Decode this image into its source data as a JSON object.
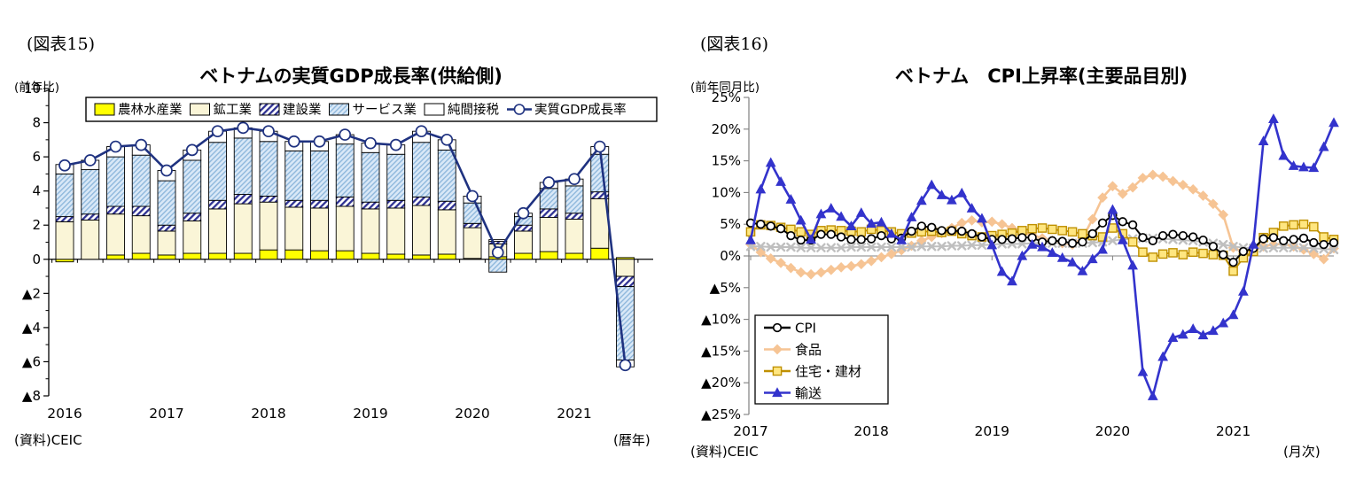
{
  "figure15": {
    "tag": "(図表15)",
    "unit_label": "(前年比)",
    "title": "ベトナムの実質GDP成長率(供給側)",
    "source": "(資料)CEIC",
    "axis_note": "(暦年)",
    "chart_data": {
      "type": "bar",
      "stacked": true,
      "x_unit": "quarterly",
      "x_years": [
        2016,
        2017,
        2018,
        2019,
        2020,
        2021
      ],
      "n_points": 23,
      "ylim": [
        -8,
        10
      ],
      "yticks": [
        10,
        8,
        6,
        4,
        2,
        0,
        -2,
        -4,
        -6,
        -8
      ],
      "bar_series": [
        {
          "name": "農林水産業",
          "fill": "#FFFF00",
          "values": [
            -0.15,
            0.0,
            0.25,
            0.35,
            0.25,
            0.35,
            0.35,
            0.35,
            0.55,
            0.55,
            0.5,
            0.5,
            0.35,
            0.3,
            0.25,
            0.3,
            0.05,
            0.15,
            0.35,
            0.45,
            0.35,
            0.65,
            0.1
          ]
        },
        {
          "name": "鉱工業",
          "fill": "#FAF5D7",
          "values": [
            2.2,
            2.3,
            2.4,
            2.2,
            1.4,
            1.9,
            2.6,
            2.9,
            2.8,
            2.5,
            2.5,
            2.6,
            2.6,
            2.7,
            2.9,
            2.6,
            1.8,
            0.75,
            1.3,
            2.0,
            2.0,
            2.9,
            -1.0
          ]
        },
        {
          "name": "建設業",
          "fill": "hatch-navy",
          "hatch_color": "#2E3192",
          "values": [
            0.3,
            0.35,
            0.45,
            0.55,
            0.35,
            0.45,
            0.5,
            0.55,
            0.35,
            0.4,
            0.45,
            0.55,
            0.4,
            0.45,
            0.5,
            0.5,
            0.25,
            0.15,
            0.35,
            0.5,
            0.35,
            0.4,
            -0.6
          ]
        },
        {
          "name": "サービス業",
          "fill": "hatch-blue",
          "hatch_color": "#8FB8DC",
          "values": [
            2.5,
            2.6,
            2.9,
            3.0,
            2.6,
            3.1,
            3.4,
            3.3,
            3.2,
            2.9,
            2.9,
            3.1,
            2.9,
            2.7,
            3.2,
            3.0,
            1.2,
            -0.75,
            0.5,
            1.2,
            1.6,
            2.2,
            -4.3
          ]
        },
        {
          "name": "純間接税",
          "fill": "#FFFFFF",
          "values": [
            0.55,
            0.55,
            0.6,
            0.6,
            0.6,
            0.6,
            0.65,
            0.6,
            0.6,
            0.55,
            0.55,
            0.55,
            0.55,
            0.55,
            0.65,
            0.6,
            0.4,
            0.1,
            0.2,
            0.35,
            0.4,
            0.45,
            -0.4
          ]
        }
      ],
      "line_series": {
        "name": "実質GDP成長率",
        "color": "#1F3280",
        "marker": "circle-open",
        "values": [
          5.5,
          5.8,
          6.6,
          6.7,
          5.2,
          6.4,
          7.5,
          7.7,
          7.5,
          6.9,
          6.9,
          7.3,
          6.8,
          6.7,
          7.5,
          7.0,
          3.7,
          0.4,
          2.7,
          4.5,
          4.7,
          6.6,
          -6.2
        ]
      }
    }
  },
  "figure16": {
    "tag": "(図表16)",
    "unit_label": "(前年同月比)",
    "title": "ベトナム　CPI上昇率(主要品目別)",
    "source": "(資料)CEIC",
    "axis_note": "(月次)",
    "chart_data": {
      "type": "line",
      "x_unit": "monthly",
      "x_start": "2017-01",
      "x_years": [
        2017,
        2018,
        2019,
        2020,
        2021
      ],
      "ylim": [
        -25,
        25
      ],
      "ytick_step": 5,
      "series": [
        {
          "name": "CPI",
          "color": "#000000",
          "marker": "circle-open",
          "marker_fill": "#FFFFFF",
          "in_legend": true,
          "values": [
            5.2,
            5.0,
            4.7,
            4.3,
            3.2,
            2.5,
            2.5,
            3.4,
            3.4,
            3.0,
            2.6,
            2.6,
            2.7,
            3.2,
            2.7,
            2.8,
            3.9,
            4.7,
            4.5,
            4.0,
            4.0,
            3.9,
            3.5,
            3.0,
            2.6,
            2.6,
            2.7,
            2.9,
            2.9,
            2.2,
            2.4,
            2.3,
            2.0,
            2.2,
            3.5,
            5.2,
            6.4,
            5.4,
            4.9,
            2.9,
            2.4,
            3.2,
            3.4,
            3.2,
            3.0,
            2.5,
            1.5,
            0.2,
            -1.0,
            0.7,
            1.2,
            2.7,
            2.9,
            2.4,
            2.6,
            2.8,
            2.1,
            1.8,
            2.1
          ]
        },
        {
          "name": "食品",
          "color": "#F6C494",
          "marker": "diamond",
          "marker_fill": "#F6C494",
          "in_legend": true,
          "values": [
            1.8,
            0.6,
            -0.4,
            -1.1,
            -1.9,
            -2.6,
            -2.9,
            -2.6,
            -2.2,
            -1.8,
            -1.6,
            -1.3,
            -0.8,
            -0.2,
            0.3,
            0.9,
            1.6,
            2.4,
            3.0,
            3.6,
            4.4,
            5.2,
            5.6,
            5.3,
            5.4,
            5.0,
            4.4,
            3.8,
            3.3,
            2.8,
            2.4,
            2.0,
            1.8,
            2.8,
            5.8,
            9.2,
            11.0,
            9.8,
            10.8,
            12.3,
            12.8,
            12.5,
            11.8,
            11.2,
            10.5,
            9.5,
            8.2,
            6.5,
            1.3,
            0.6,
            0.8,
            1.5,
            1.8,
            1.9,
            1.5,
            1.0,
            0.3,
            -0.5,
            1.2
          ]
        },
        {
          "name": "住宅・建材",
          "color": "#BF9000",
          "marker": "square",
          "marker_fill": "#FFE680",
          "in_legend": true,
          "values": [
            3.8,
            4.9,
            4.8,
            4.5,
            4.2,
            3.8,
            3.4,
            4.0,
            4.1,
            4.0,
            3.9,
            3.8,
            4.2,
            4.0,
            3.8,
            3.5,
            3.6,
            3.8,
            3.9,
            3.7,
            3.9,
            3.5,
            3.2,
            3.0,
            3.2,
            3.4,
            3.6,
            4.0,
            4.3,
            4.4,
            4.2,
            4.0,
            3.8,
            3.5,
            3.2,
            3.0,
            4.4,
            3.5,
            2.2,
            0.6,
            -0.2,
            0.3,
            0.5,
            0.2,
            0.6,
            0.4,
            0.2,
            0.1,
            -2.4,
            -0.3,
            0.7,
            2.9,
            3.7,
            4.7,
            4.9,
            5.0,
            4.6,
            3.0,
            2.6
          ]
        },
        {
          "name": "輸送",
          "color": "#3333CC",
          "marker": "triangle",
          "marker_fill": "#3333CC",
          "in_legend": true,
          "values": [
            2.5,
            10.5,
            14.7,
            11.7,
            8.9,
            5.6,
            2.6,
            6.6,
            7.5,
            6.2,
            4.7,
            6.8,
            5.1,
            5.3,
            3.5,
            2.5,
            6.1,
            8.7,
            11.2,
            9.6,
            8.8,
            9.9,
            7.5,
            5.9,
            1.7,
            -2.5,
            -4.0,
            0.0,
            1.8,
            1.4,
            0.5,
            -0.3,
            -1.0,
            -2.4,
            -0.5,
            1.0,
            7.3,
            2.5,
            -1.5,
            -18.3,
            -22.1,
            -15.9,
            -12.9,
            -12.4,
            -11.5,
            -12.5,
            -11.8,
            -10.6,
            -9.3,
            -5.6,
            1.8,
            18.1,
            21.6,
            15.8,
            14.2,
            14.0,
            13.9,
            17.2,
            21.0
          ]
        },
        {
          "name": "",
          "color": "#BFBFBF",
          "marker": "x",
          "marker_fill": "#BFBFBF",
          "in_legend": false,
          "values": [
            1.5,
            1.5,
            1.4,
            1.4,
            1.4,
            1.3,
            1.3,
            1.3,
            1.3,
            1.3,
            1.4,
            1.4,
            1.4,
            1.4,
            1.4,
            1.4,
            1.4,
            1.5,
            1.5,
            1.5,
            1.6,
            1.6,
            1.7,
            1.7,
            1.8,
            1.9,
            1.9,
            1.9,
            2.0,
            2.0,
            2.0,
            2.0,
            2.0,
            2.0,
            2.1,
            2.2,
            2.4,
            2.6,
            2.7,
            2.8,
            2.8,
            2.7,
            2.6,
            2.5,
            2.4,
            2.2,
            2.0,
            1.8,
            1.5,
            1.3,
            1.2,
            1.2,
            1.3,
            1.3,
            1.3,
            1.3,
            1.2,
            1.1,
            1.0
          ]
        }
      ]
    }
  }
}
